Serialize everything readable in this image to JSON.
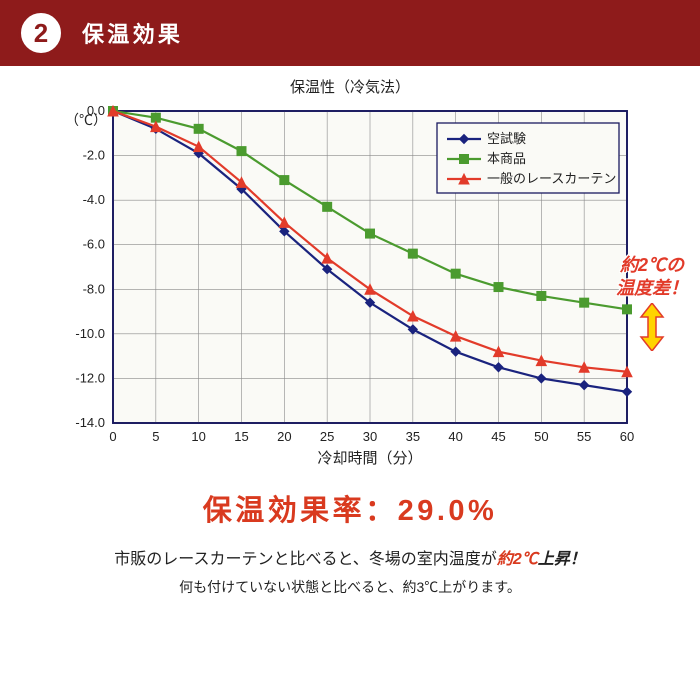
{
  "header": {
    "badge_number": "2",
    "title": "保温効果",
    "bg_color": "#8e1b1b",
    "title_color": "#ffffff",
    "badge_bg": "#ffffff",
    "badge_text_color": "#8e1b1b",
    "badge_border_color": "#8e1b1b"
  },
  "chart": {
    "type": "line",
    "title": "保温性（冷気法）",
    "title_fontsize": 15,
    "title_color": "#222222",
    "plot_bg": "#fafaf6",
    "border_color": "#1a1a60",
    "grid_color": "#8a8a8a",
    "axis_label_color": "#222222",
    "tick_font_size": 13,
    "x_label": "冷却時間（分）",
    "y_label": "（℃）",
    "x_label_fontsize": 15,
    "y_label_fontsize": 14,
    "x_ticks": [
      0,
      5,
      10,
      15,
      20,
      25,
      30,
      35,
      40,
      45,
      50,
      55,
      60
    ],
    "y_ticks": [
      0.0,
      -2.0,
      -4.0,
      -6.0,
      -8.0,
      -10.0,
      -12.0,
      -14.0
    ],
    "y_tick_labels": [
      "0.0",
      "-2.0",
      "-4.0",
      "-6.0",
      "-8.0",
      "-10.0",
      "-12.0",
      "-14.0"
    ],
    "xlim": [
      0,
      60
    ],
    "ylim": [
      -14.0,
      0.0
    ],
    "legend": {
      "position": "inside-top-right",
      "border_color": "#1a1a60",
      "bg": "#fafaf6",
      "font_size": 13
    },
    "series": [
      {
        "name": "空試験",
        "color": "#1a237e",
        "marker": "diamond",
        "marker_size": 9,
        "line_width": 2.2,
        "data": [
          [
            0,
            0.0
          ],
          [
            5,
            -0.8
          ],
          [
            10,
            -1.9
          ],
          [
            15,
            -3.5
          ],
          [
            20,
            -5.4
          ],
          [
            25,
            -7.1
          ],
          [
            30,
            -8.6
          ],
          [
            35,
            -9.8
          ],
          [
            40,
            -10.8
          ],
          [
            45,
            -11.5
          ],
          [
            50,
            -12.0
          ],
          [
            55,
            -12.3
          ],
          [
            60,
            -12.6
          ]
        ]
      },
      {
        "name": "本商品",
        "color": "#4b9b2f",
        "marker": "square",
        "marker_size": 9,
        "line_width": 2.2,
        "data": [
          [
            0,
            0.0
          ],
          [
            5,
            -0.3
          ],
          [
            10,
            -0.8
          ],
          [
            15,
            -1.8
          ],
          [
            20,
            -3.1
          ],
          [
            25,
            -4.3
          ],
          [
            30,
            -5.5
          ],
          [
            35,
            -6.4
          ],
          [
            40,
            -7.3
          ],
          [
            45,
            -7.9
          ],
          [
            50,
            -8.3
          ],
          [
            55,
            -8.6
          ],
          [
            60,
            -8.9
          ]
        ]
      },
      {
        "name": "一般のレースカーテン",
        "color": "#e23b2a",
        "marker": "triangle",
        "marker_size": 10,
        "line_width": 2.2,
        "data": [
          [
            0,
            0.0
          ],
          [
            5,
            -0.7
          ],
          [
            10,
            -1.6
          ],
          [
            15,
            -3.2
          ],
          [
            20,
            -5.0
          ],
          [
            25,
            -6.6
          ],
          [
            30,
            -8.0
          ],
          [
            35,
            -9.2
          ],
          [
            40,
            -10.1
          ],
          [
            45,
            -10.8
          ],
          [
            50,
            -11.2
          ],
          [
            55,
            -11.5
          ],
          [
            60,
            -11.7
          ]
        ]
      }
    ]
  },
  "callout": {
    "line1": "約2℃の",
    "line2": "温度差！",
    "text_color": "#e23b2a",
    "arrow_fill": "#ffd400",
    "arrow_stroke": "#e23b2a"
  },
  "rate": {
    "text": "保温効果率：29.0%",
    "color": "#d93a1f"
  },
  "desc": {
    "line1_pre": "市販のレースカーテンと比べると、冬場の室内温度が",
    "line1_em": "約2℃",
    "line1_post": "上昇！",
    "em_color": "#d93a1f",
    "base_color": "#222222",
    "line2": "何も付けていない状態と比べると、約3℃上がります。"
  }
}
